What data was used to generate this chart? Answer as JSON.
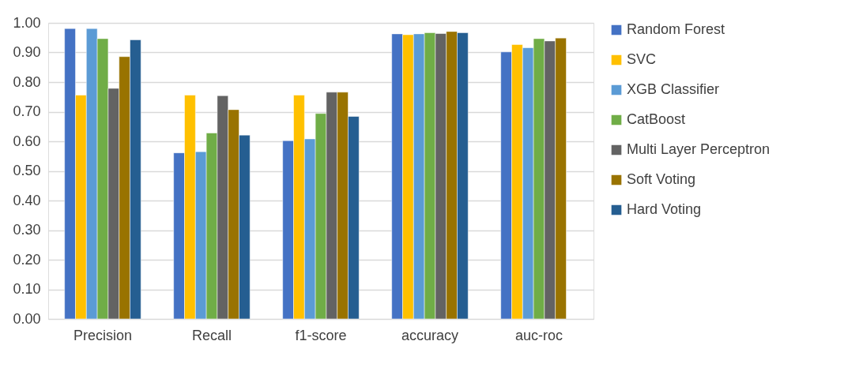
{
  "chart_data": {
    "type": "bar",
    "categories": [
      "Precision",
      "Recall",
      "f1-score",
      "accuracy",
      "auc-roc"
    ],
    "series": [
      {
        "name": "Random Forest",
        "color": "#4472c4",
        "values": [
          0.981,
          0.561,
          0.602,
          0.963,
          0.902
        ]
      },
      {
        "name": "SVC",
        "color": "#ffc000",
        "values": [
          0.756,
          0.756,
          0.756,
          0.96,
          0.927
        ]
      },
      {
        "name": "XGB Classifier",
        "color": "#5b9bd5",
        "values": [
          0.981,
          0.565,
          0.608,
          0.963,
          0.916
        ]
      },
      {
        "name": "CatBoost",
        "color": "#70ad47",
        "values": [
          0.947,
          0.628,
          0.694,
          0.967,
          0.947
        ]
      },
      {
        "name": "Multi Layer Perceptron",
        "color": "#636363",
        "values": [
          0.779,
          0.754,
          0.766,
          0.964,
          0.939
        ]
      },
      {
        "name": "Soft Voting",
        "color": "#997300",
        "values": [
          0.886,
          0.707,
          0.766,
          0.971,
          0.949
        ]
      },
      {
        "name": "Hard Voting",
        "color": "#255e91",
        "values": [
          0.943,
          0.621,
          0.684,
          0.967,
          null
        ]
      }
    ],
    "ylim": [
      0,
      1
    ],
    "yticks": [
      {
        "value": 0,
        "label": "0.00"
      },
      {
        "value": 0.1,
        "label": "0.10"
      },
      {
        "value": 0.2,
        "label": "0.20"
      },
      {
        "value": 0.3,
        "label": "0.30"
      },
      {
        "value": 0.4,
        "label": "0.40"
      },
      {
        "value": 0.5,
        "label": "0.50"
      },
      {
        "value": 0.6,
        "label": "0.60"
      },
      {
        "value": 0.7,
        "label": "0.70"
      },
      {
        "value": 0.8,
        "label": "0.80"
      },
      {
        "value": 0.9,
        "label": "0.90"
      },
      {
        "value": 1,
        "label": "1.00"
      }
    ],
    "grid": "y",
    "legend": "right"
  }
}
